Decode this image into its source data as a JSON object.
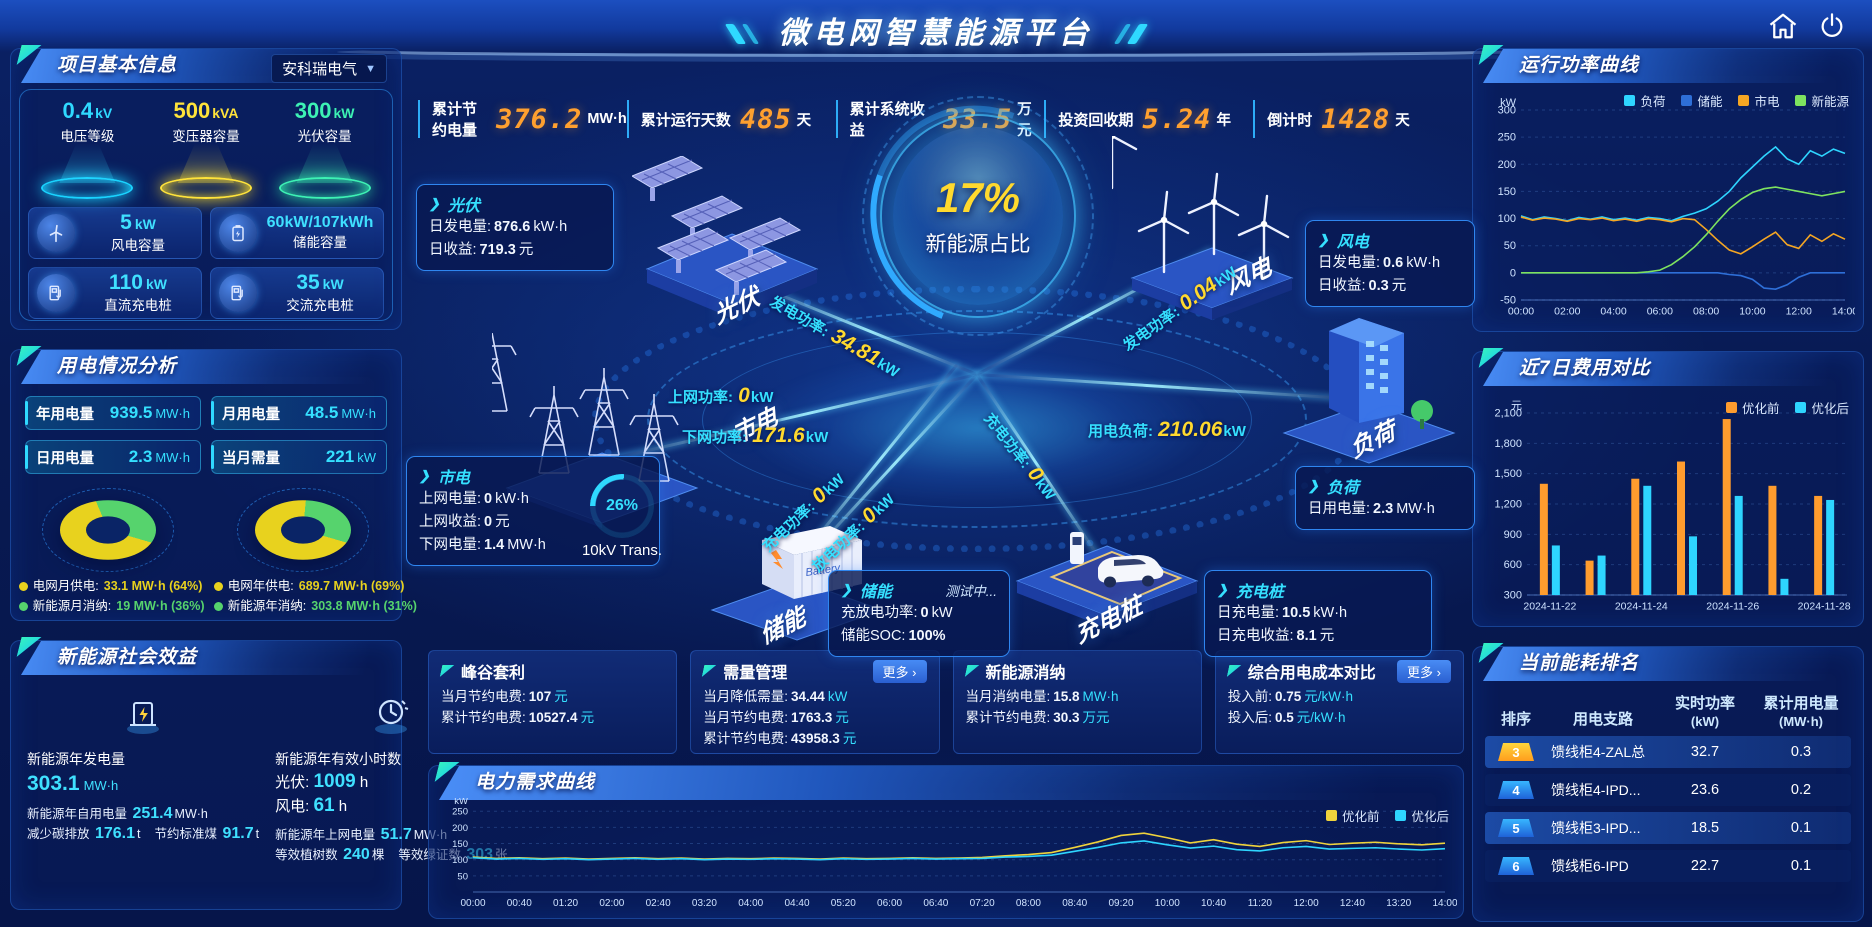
{
  "header": {
    "title": "微电网智慧能源平台"
  },
  "topbar": {
    "stats": [
      {
        "label": "累计节约电量",
        "value": "376.2",
        "unit": "MW·h"
      },
      {
        "label": "累计运行天数",
        "value": "485",
        "unit": "天"
      },
      {
        "label": "累计系统收益",
        "value": "33.5",
        "unit": "万元"
      },
      {
        "label": "投资回收期",
        "value": "5.24",
        "unit": "年"
      },
      {
        "label": "倒计时",
        "value": "1428",
        "unit": "天"
      }
    ]
  },
  "project_info": {
    "title": "项目基本信息",
    "company": "安科瑞电气",
    "pedestals": [
      {
        "value": "0.4",
        "unit": "kV",
        "label": "电压等级",
        "color": "#2fd9ff"
      },
      {
        "value": "500",
        "unit": "kVA",
        "label": "变压器容量",
        "color": "#ffe33a"
      },
      {
        "value": "300",
        "unit": "kW",
        "label": "光伏容量",
        "color": "#3df2b4"
      }
    ],
    "capacities": [
      {
        "value": "5",
        "unit": "kW",
        "label": "风电容量",
        "icon": "wind-icon"
      },
      {
        "value": "60kW/107kWh",
        "unit": "",
        "label": "储能容量",
        "icon": "battery-icon"
      },
      {
        "value": "110",
        "unit": "kW",
        "label": "直流充电桩",
        "icon": "dc-charger-icon"
      },
      {
        "value": "35",
        "unit": "kW",
        "label": "交流充电桩",
        "icon": "ac-charger-icon"
      }
    ]
  },
  "usage_analysis": {
    "title": "用电情况分析",
    "stats": [
      {
        "label": "年用电量",
        "value": "939.5",
        "unit": "MW·h"
      },
      {
        "label": "月用电量",
        "value": "48.5",
        "unit": "MW·h"
      },
      {
        "label": "日用电量",
        "value": "2.3",
        "unit": "MW·h"
      },
      {
        "label": "当月需量",
        "value": "221",
        "unit": "kW"
      }
    ],
    "donuts": [
      {
        "slices": [
          {
            "label": "电网月供电:",
            "value": "33.1 MW·h (64%)",
            "pct": 64,
            "color": "#e8d21e"
          },
          {
            "label": "新能源月消纳:",
            "value": "19 MW·h (36%)",
            "pct": 36,
            "color": "#56d36d"
          }
        ]
      },
      {
        "slices": [
          {
            "label": "电网年供电:",
            "value": "689.7 MW·h (69%)",
            "pct": 69,
            "color": "#e8d21e"
          },
          {
            "label": "新能源年消纳:",
            "value": "303.8 MW·h (31%)",
            "pct": 31,
            "color": "#56d36d"
          }
        ]
      }
    ]
  },
  "social_benefit": {
    "title": "新能源社会效益",
    "columns": [
      {
        "icon": "solar-energy-icon",
        "main": {
          "label": "新能源年发电量",
          "value": "303.1",
          "unit": "MW·h"
        },
        "rows": [
          {
            "label": "新能源年自用电量",
            "value": "251.4",
            "unit": "MW·h"
          },
          {
            "label": "减少碳排放",
            "value": "176.1",
            "unit": "t"
          },
          {
            "label": "节约标准煤",
            "value": "91.7",
            "unit": "t"
          }
        ]
      },
      {
        "icon": "hours-clock-icon",
        "main": {
          "label": "新能源年有效小时数",
          "subs": [
            {
              "label": "光伏:",
              "value": "1009",
              "unit": "h"
            },
            {
              "label": "风电:",
              "value": "61",
              "unit": "h"
            }
          ]
        },
        "rows": [
          {
            "label": "新能源年上网电量",
            "value": "51.7",
            "unit": "MW·h"
          },
          {
            "label": "等效植树数",
            "value": "240",
            "unit": "棵"
          },
          {
            "label": "等效绿证数",
            "value": "303",
            "unit": "张"
          }
        ]
      }
    ]
  },
  "diagram": {
    "center": {
      "value": "17%",
      "label": "新能源占比"
    },
    "nodes": {
      "pv": "光伏",
      "wind": "风电",
      "grid": "市电",
      "load": "负荷",
      "storage": "储能",
      "charger": "充电桩"
    },
    "flows": [
      {
        "label": "发电功率:",
        "value": "34.81",
        "unit": "kW"
      },
      {
        "label": "上网功率:",
        "value": "0",
        "unit": "kW"
      },
      {
        "label": "下网功率:",
        "value": "171.6",
        "unit": "kW"
      },
      {
        "label": "发电功率:",
        "value": "0.04",
        "unit": "kW"
      },
      {
        "label": "用电负荷:",
        "value": "210.06",
        "unit": "kW"
      },
      {
        "label": "充电功率:",
        "value": "0",
        "unit": "kW"
      },
      {
        "label": "放电功率:",
        "value": "0",
        "unit": "kW"
      },
      {
        "label": "充电功率:",
        "value": "0",
        "unit": "kW"
      }
    ],
    "gauge": {
      "value": "26%",
      "label": "10kV Trans."
    },
    "boxes": {
      "pv": {
        "title": "光伏",
        "rows": [
          {
            "label": "日发电量:",
            "value": "876.6",
            "unit": "kW·h"
          },
          {
            "label": "日收益:",
            "value": "719.3",
            "unit": "元"
          }
        ]
      },
      "grid": {
        "title": "市电",
        "rows": [
          {
            "label": "上网电量:",
            "value": "0",
            "unit": "kW·h"
          },
          {
            "label": "上网收益:",
            "value": "0",
            "unit": "元"
          },
          {
            "label": "下网电量:",
            "value": "1.4",
            "unit": "MW·h"
          }
        ]
      },
      "storage": {
        "title": "储能",
        "badge": "测试中...",
        "rows": [
          {
            "label": "充放电功率:",
            "value": "0",
            "unit": "kW"
          },
          {
            "label": "储能SOC:",
            "value": "100%",
            "unit": ""
          }
        ]
      },
      "wind": {
        "title": "风电",
        "rows": [
          {
            "label": "日发电量:",
            "value": "0.6",
            "unit": "kW·h"
          },
          {
            "label": "日收益:",
            "value": "0.3",
            "unit": "元"
          }
        ]
      },
      "load": {
        "title": "负荷",
        "rows": [
          {
            "label": "日用电量:",
            "value": "2.3",
            "unit": "MW·h"
          }
        ]
      },
      "charger": {
        "title": "充电桩",
        "rows": [
          {
            "label": "日充电量:",
            "value": "10.5",
            "unit": "kW·h"
          },
          {
            "label": "日充电收益:",
            "value": "8.1",
            "unit": "元"
          }
        ]
      }
    }
  },
  "cards": [
    {
      "title": "峰谷套利",
      "more": "",
      "rows": [
        {
          "label": "当月节约电费:",
          "value": "107",
          "unit": "元"
        },
        {
          "label": "累计节约电费:",
          "value": "10527.4",
          "unit": "元"
        }
      ]
    },
    {
      "title": "需量管理",
      "more": "更多",
      "rows": [
        {
          "label": "当月降低需量:",
          "value": "34.44",
          "unit": "kW"
        },
        {
          "label": "当月节约电费:",
          "value": "1763.3",
          "unit": "元"
        },
        {
          "label": "累计节约电费:",
          "value": "43958.3",
          "unit": "元"
        }
      ]
    },
    {
      "title": "新能源消纳",
      "more": "",
      "rows": [
        {
          "label": "当月消纳电量:",
          "value": "15.8",
          "unit": "MW·h"
        },
        {
          "label": "累计节约电费:",
          "value": "30.3",
          "unit": "万元"
        }
      ]
    },
    {
      "title": "综合用电成本对比",
      "more": "更多",
      "rows": [
        {
          "label": "投入前:",
          "value": "0.75",
          "unit": "元/kW·h"
        },
        {
          "label": "投入后:",
          "value": "0.5",
          "unit": "元/kW·h"
        }
      ]
    }
  ],
  "panels": {
    "demand": "电力需求曲线",
    "power": "运行功率曲线",
    "cost": "近7日费用对比",
    "rank": "当前能耗排名"
  },
  "ranking": {
    "headers": [
      {
        "t": "排序",
        "sub": ""
      },
      {
        "t": "用电支路",
        "sub": ""
      },
      {
        "t": "实时功率",
        "sub": "(kW)"
      },
      {
        "t": "累计用电量",
        "sub": "(MW·h)"
      }
    ],
    "rows": [
      {
        "rank": "3",
        "branch": "馈线柜4-ZAL总",
        "power": "32.7",
        "energy": "0.3",
        "highlight": true,
        "rank_style": "gold"
      },
      {
        "rank": "4",
        "branch": "馈线柜4-IPD...",
        "power": "23.6",
        "energy": "0.2",
        "highlight": false,
        "rank_style": "blue"
      },
      {
        "rank": "5",
        "branch": "馈线柜3-IPD...",
        "power": "18.5",
        "energy": "0.1",
        "highlight": true,
        "rank_style": "blue"
      },
      {
        "rank": "6",
        "branch": "馈线柜6-IPD",
        "power": "22.7",
        "energy": "0.1",
        "highlight": false,
        "rank_style": "blue"
      }
    ]
  },
  "chart_data": [
    {
      "id": "power_curve",
      "type": "line",
      "title": "运行功率曲线",
      "ylabel": "kW",
      "ylim": [
        -50,
        300
      ],
      "yticks": [
        300,
        250,
        200,
        150,
        100,
        50,
        0,
        -50
      ],
      "xticks": [
        "00:00",
        "02:00",
        "04:00",
        "06:00",
        "08:00",
        "10:00",
        "12:00",
        "14:00"
      ],
      "legend_position": "top",
      "series": [
        {
          "name": "负荷",
          "color": "#2ed5ff",
          "values": [
            105,
            98,
            103,
            100,
            96,
            102,
            99,
            103,
            98,
            101,
            97,
            102,
            100,
            96,
            104,
            110,
            118,
            132,
            150,
            175,
            195,
            215,
            232,
            210,
            200,
            225,
            215,
            228,
            220
          ]
        },
        {
          "name": "储能",
          "color": "#2e6fd8",
          "values": [
            0,
            0,
            0,
            0,
            0,
            0,
            0,
            0,
            0,
            0,
            0,
            0,
            0,
            0,
            0,
            0,
            0,
            0,
            -3,
            -5,
            -12,
            -28,
            -30,
            -22,
            -8,
            0,
            0,
            0,
            0
          ]
        },
        {
          "name": "市电",
          "color": "#f5a623",
          "values": [
            103,
            97,
            101,
            99,
            95,
            100,
            98,
            101,
            96,
            99,
            95,
            100,
            98,
            94,
            100,
            98,
            80,
            60,
            42,
            35,
            48,
            62,
            75,
            52,
            45,
            70,
            58,
            72,
            62
          ]
        },
        {
          "name": "新能源",
          "color": "#7ee35f",
          "values": [
            0,
            0,
            0,
            0,
            0,
            0,
            0,
            0,
            0,
            0,
            0,
            2,
            5,
            15,
            30,
            48,
            70,
            95,
            118,
            135,
            148,
            155,
            158,
            154,
            150,
            146,
            142,
            146,
            150
          ]
        }
      ]
    },
    {
      "id": "cost_compare",
      "type": "bar",
      "title": "近7日费用对比",
      "ylabel": "元",
      "ylim": [
        300,
        2100
      ],
      "yticks": [
        2100,
        1800,
        1500,
        1200,
        900,
        600,
        300
      ],
      "categories": [
        "2024-11-22",
        "2024-11-23",
        "2024-11-24",
        "2024-11-25",
        "2024-11-26",
        "2024-11-27",
        "2024-11-28"
      ],
      "xtick_every": 2,
      "legend_position": "top",
      "series": [
        {
          "name": "优化前",
          "color": "#ff9c2e",
          "values": [
            1400,
            640,
            1450,
            1620,
            2040,
            1380,
            1280
          ]
        },
        {
          "name": "优化后",
          "color": "#2ed5ff",
          "values": [
            790,
            690,
            1380,
            880,
            1280,
            460,
            1240
          ]
        }
      ]
    },
    {
      "id": "demand_curve",
      "type": "line",
      "title": "电力需求曲线",
      "ylabel": "kW",
      "ylim": [
        0,
        260
      ],
      "yticks": [
        250,
        200,
        150,
        100,
        50
      ],
      "xticks": [
        "00:00",
        "00:40",
        "01:20",
        "02:00",
        "02:40",
        "03:20",
        "04:00",
        "04:40",
        "05:20",
        "06:00",
        "06:40",
        "07:20",
        "08:00",
        "08:40",
        "09:20",
        "10:00",
        "10:40",
        "11:20",
        "12:00",
        "12:40",
        "13:20",
        "14:00"
      ],
      "legend_position": "top",
      "series": [
        {
          "name": "优化前",
          "color": "#f0d33c",
          "values": [
            108,
            104,
            106,
            103,
            105,
            102,
            104,
            106,
            103,
            105,
            102,
            104,
            103,
            105,
            104,
            102,
            105,
            103,
            104,
            106,
            104,
            105,
            107,
            112,
            116,
            122,
            138,
            155,
            175,
            182,
            168,
            152,
            162,
            148,
            141,
            153,
            159,
            147,
            151,
            154,
            149,
            146,
            151
          ]
        },
        {
          "name": "优化后",
          "color": "#2ed5ff",
          "values": [
            106,
            102,
            104,
            101,
            103,
            100,
            102,
            104,
            101,
            103,
            100,
            102,
            101,
            103,
            102,
            100,
            103,
            101,
            102,
            104,
            102,
            103,
            104,
            108,
            110,
            114,
            126,
            138,
            152,
            158,
            146,
            136,
            142,
            131,
            127,
            137,
            141,
            133,
            135,
            137,
            133,
            130,
            134
          ]
        }
      ]
    }
  ]
}
